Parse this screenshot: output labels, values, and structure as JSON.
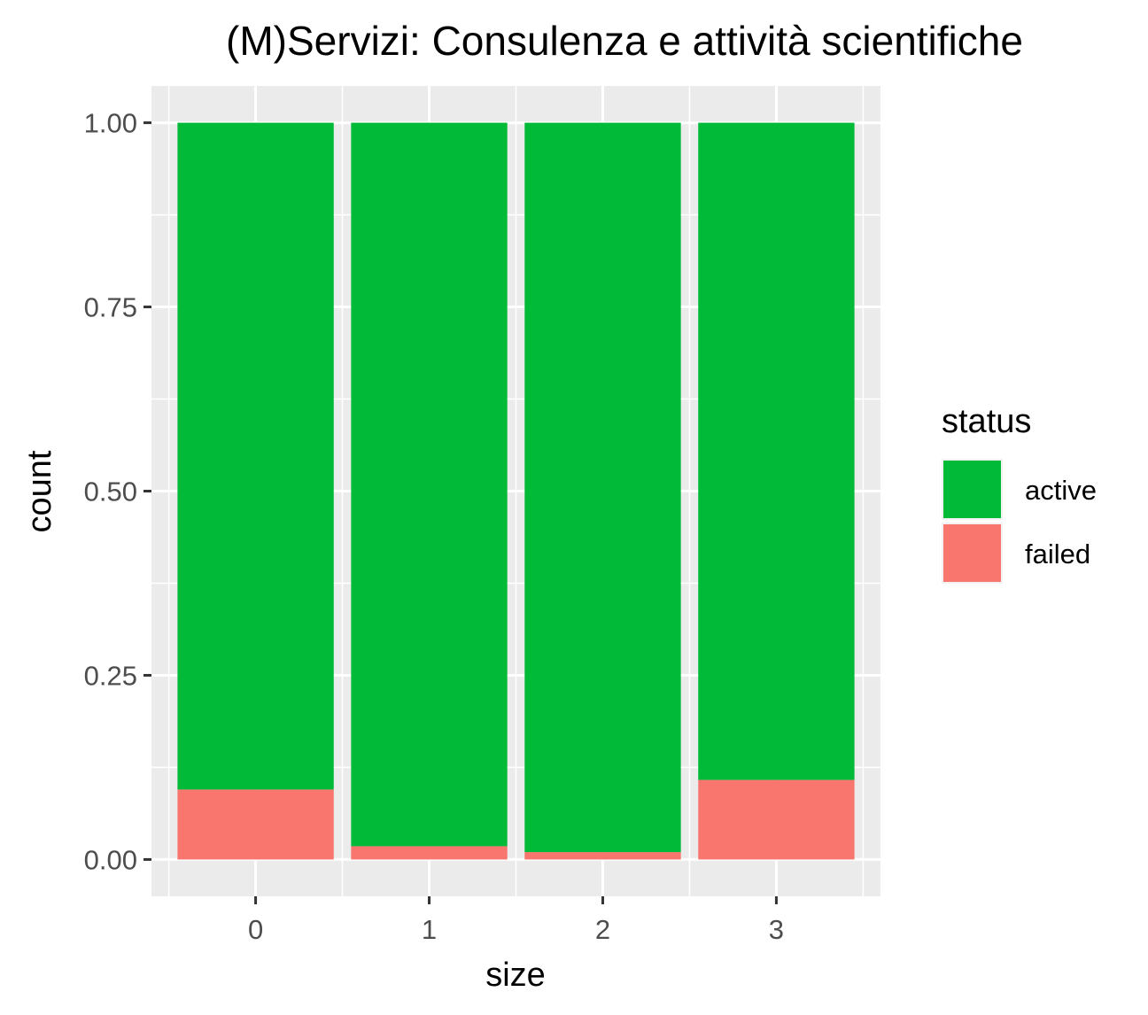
{
  "chart_data": {
    "type": "bar",
    "stacked": true,
    "title": "(M)Servizi: Consulenza e attività scientifiche",
    "xlabel": "size",
    "ylabel": "count",
    "categories": [
      "0",
      "1",
      "2",
      "3"
    ],
    "series": [
      {
        "name": "failed",
        "values": [
          0.095,
          0.018,
          0.01,
          0.108
        ],
        "color": "#F8766D"
      },
      {
        "name": "active",
        "values": [
          0.905,
          0.982,
          0.99,
          0.892
        ],
        "color": "#00BA38"
      }
    ],
    "ylim": [
      -0.05,
      1.05
    ],
    "yticks": [
      "0.00",
      "0.25",
      "0.50",
      "0.75",
      "1.00"
    ],
    "grid": true,
    "panel_background": "#EBEBEB",
    "legend": {
      "title": "status",
      "placement": "right",
      "items": [
        {
          "label": "active",
          "color": "#00BA38"
        },
        {
          "label": "failed",
          "color": "#F8766D"
        }
      ]
    }
  }
}
